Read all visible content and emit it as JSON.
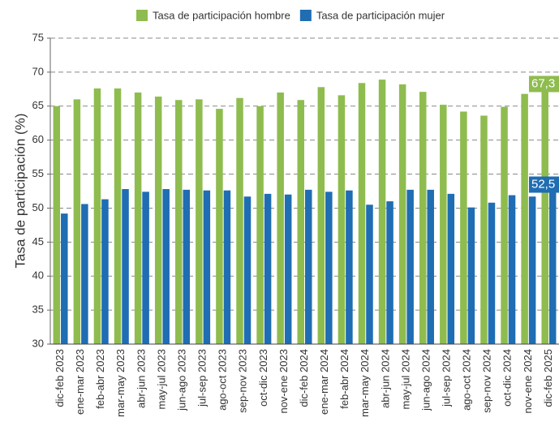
{
  "chart_data": {
    "type": "bar",
    "y_label": "Tasa de participación (%)",
    "categories": [
      "dic-feb 2023",
      "ene-mar 2023",
      "feb-abr 2023",
      "mar-may 2023",
      "abr-jun 2023",
      "may-jul 2023",
      "jun-ago 2023",
      "jul-sep 2023",
      "ago-oct 2023",
      "sep-nov 2023",
      "oct-dic 2023",
      "nov-ene 2023",
      "dic-feb 2024",
      "ene-mar 2024",
      "feb-abr 2024",
      "mar-may 2024",
      "abr-jun 2024",
      "may-jul 2024",
      "jun-ago 2024",
      "jul-sep 2024",
      "ago-oct 2024",
      "sep-nov 2024",
      "oct-dic 2024",
      "nov-ene 2024",
      "dic-feb 2025"
    ],
    "series": [
      {
        "name": "Tasa de participación hombre",
        "color": "#8fbc4f",
        "values": [
          65.0,
          66.0,
          67.6,
          67.6,
          67.0,
          66.4,
          65.9,
          66.0,
          64.6,
          66.2,
          65.0,
          67.0,
          65.9,
          67.8,
          66.6,
          68.4,
          68.9,
          68.2,
          67.1,
          65.2,
          64.2,
          63.6,
          64.9,
          66.8,
          67.3
        ],
        "value_labels": [
          null,
          null,
          null,
          null,
          null,
          null,
          null,
          null,
          null,
          null,
          null,
          null,
          null,
          null,
          null,
          null,
          null,
          null,
          null,
          null,
          null,
          null,
          null,
          null,
          "67,3"
        ]
      },
      {
        "name": "Tasa de participación mujer",
        "color": "#1f6db3",
        "values": [
          49.2,
          50.6,
          51.3,
          52.8,
          52.4,
          52.8,
          52.7,
          52.6,
          52.6,
          51.7,
          52.1,
          52.0,
          52.7,
          52.4,
          52.6,
          50.5,
          51.0,
          52.7,
          52.7,
          52.1,
          50.1,
          50.8,
          51.9,
          51.7,
          52.5
        ],
        "value_labels": [
          null,
          null,
          null,
          null,
          null,
          null,
          null,
          null,
          null,
          null,
          null,
          null,
          null,
          null,
          null,
          null,
          null,
          null,
          null,
          null,
          null,
          null,
          null,
          null,
          "52,5"
        ]
      }
    ],
    "ylim": [
      30,
      75
    ],
    "yticks": [
      30,
      35,
      40,
      45,
      50,
      55,
      60,
      65,
      70,
      75
    ],
    "grid": true,
    "legend": "top"
  }
}
